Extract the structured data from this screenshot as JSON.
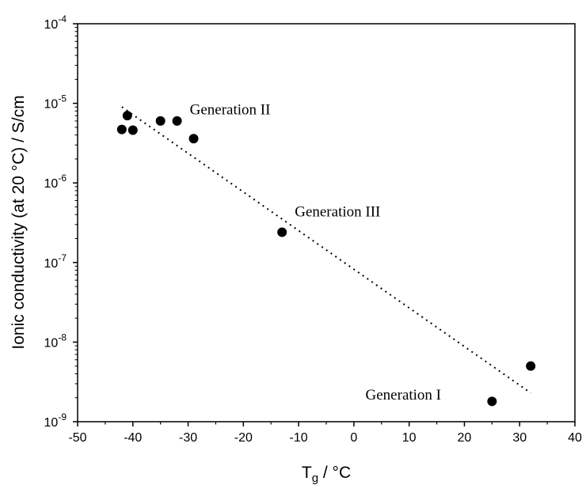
{
  "chart_data": {
    "type": "scatter",
    "xlabel": "T",
    "xlabel_sub": "g",
    "xlabel_suffix": " / °C",
    "ylabel": "Ionic conductivity (at 20 °C) / S/cm",
    "xlim": [
      -50,
      40
    ],
    "ylim_log10": [
      -9,
      -4
    ],
    "yscale": "log",
    "grid": false,
    "x_ticks": [
      {
        "value": -50,
        "label": "-50"
      },
      {
        "value": -40,
        "label": "-40"
      },
      {
        "value": -30,
        "label": "-30"
      },
      {
        "value": -20,
        "label": "-20"
      },
      {
        "value": -10,
        "label": "-10"
      },
      {
        "value": 0,
        "label": "0"
      },
      {
        "value": 10,
        "label": "10"
      },
      {
        "value": 20,
        "label": "20"
      },
      {
        "value": 30,
        "label": "30"
      },
      {
        "value": 40,
        "label": "40"
      }
    ],
    "y_ticks": [
      {
        "exp": -9,
        "base": "10",
        "sup": "-9"
      },
      {
        "exp": -8,
        "base": "10",
        "sup": "-8"
      },
      {
        "exp": -7,
        "base": "10",
        "sup": "-7"
      },
      {
        "exp": -6,
        "base": "10",
        "sup": "-6"
      },
      {
        "exp": -5,
        "base": "10",
        "sup": "-5"
      },
      {
        "exp": -4,
        "base": "10",
        "sup": "-4"
      }
    ],
    "points": [
      {
        "x": -42,
        "y": 4.7e-06
      },
      {
        "x": -41,
        "y": 7e-06
      },
      {
        "x": -40,
        "y": 4.6e-06
      },
      {
        "x": -35,
        "y": 6e-06
      },
      {
        "x": -32,
        "y": 6e-06
      },
      {
        "x": -29,
        "y": 3.6e-06
      },
      {
        "x": -13,
        "y": 2.4e-07
      },
      {
        "x": 25,
        "y": 1.8e-09
      },
      {
        "x": 32,
        "y": 5e-09
      }
    ],
    "trend_line": {
      "style": "dotted",
      "x": [
        -42,
        32
      ],
      "y": [
        9e-06,
        2.3e-09
      ]
    },
    "annotations": [
      {
        "text": "Generation II",
        "x": -29.7,
        "y": 7.3e-06
      },
      {
        "text": "Generation III",
        "x": -10.7,
        "y": 3.8e-07
      },
      {
        "text": "Generation I",
        "x": 2.1,
        "y": 1.9e-09
      }
    ],
    "colors": {
      "marker": "#000000",
      "axis": "#000000",
      "background": "#ffffff"
    }
  }
}
